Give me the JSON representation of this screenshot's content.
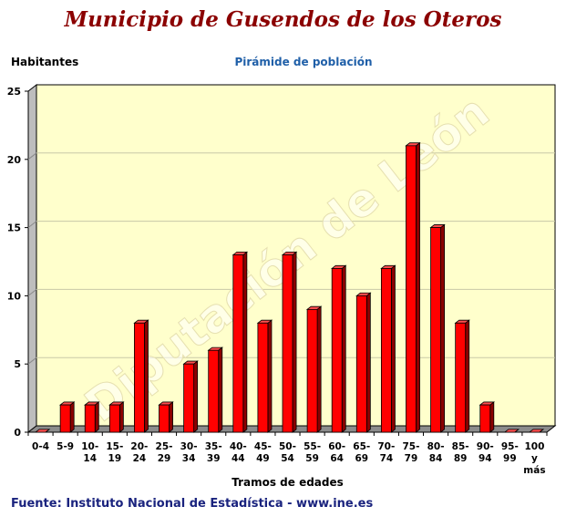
{
  "header": {
    "title": "Municipio de Gusendos de los Oteros",
    "subtitle": "Pirámide de población",
    "y_unit": "Habitantes"
  },
  "footer": {
    "source": "Fuente: Instituto Nacional de Estadística - www.ine.es"
  },
  "watermark": "Diputación de León",
  "chart_data": {
    "type": "bar",
    "xlabel": "Tramos de edades",
    "ylabel": "Habitantes",
    "ylim": [
      0,
      25
    ],
    "yticks": [
      0,
      5,
      10,
      15,
      20,
      25
    ],
    "grid": true,
    "categories": [
      [
        "0-4"
      ],
      [
        "5-9"
      ],
      [
        "10-",
        "14"
      ],
      [
        "15-",
        "19"
      ],
      [
        "20-",
        "24"
      ],
      [
        "25-",
        "29"
      ],
      [
        "30-",
        "34"
      ],
      [
        "35-",
        "39"
      ],
      [
        "40-",
        "44"
      ],
      [
        "45-",
        "49"
      ],
      [
        "50-",
        "54"
      ],
      [
        "55-",
        "59"
      ],
      [
        "60-",
        "64"
      ],
      [
        "65-",
        "69"
      ],
      [
        "70-",
        "74"
      ],
      [
        "75-",
        "79"
      ],
      [
        "80-",
        "84"
      ],
      [
        "85-",
        "89"
      ],
      [
        "90-",
        "94"
      ],
      [
        "95-",
        "99"
      ],
      [
        "100",
        "y",
        "más"
      ]
    ],
    "values": [
      0,
      2,
      2,
      2,
      8,
      2,
      5,
      6,
      13,
      8,
      13,
      9,
      12,
      10,
      12,
      21,
      15,
      8,
      2,
      0,
      0
    ],
    "colors": {
      "bar_front": "#ff0000",
      "bar_side": "#8b0000",
      "bar_top": "#ff4d4d",
      "plot_bg": "#ffffcc",
      "floor": "#8c8c8c",
      "wall_side": "#bdbdbd",
      "grid": "#c8c8a8"
    }
  }
}
